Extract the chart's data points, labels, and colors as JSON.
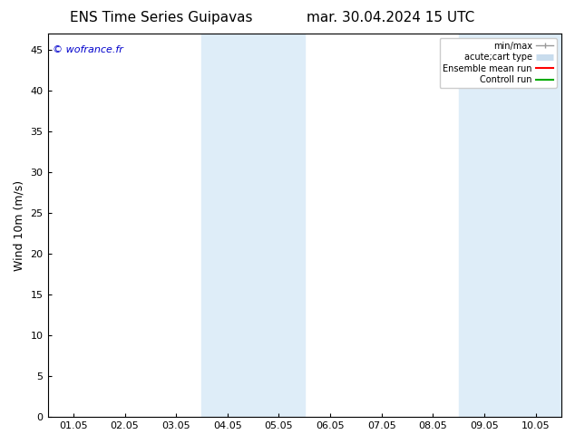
{
  "title_left": "ENS Time Series Guipavas",
  "title_right": "mar. 30.04.2024 15 UTC",
  "ylabel": "Wind 10m (m/s)",
  "xlabel_ticks": [
    "01.05",
    "02.05",
    "03.05",
    "04.05",
    "05.05",
    "06.05",
    "07.05",
    "08.05",
    "09.05",
    "10.05"
  ],
  "x_positions": [
    0,
    1,
    2,
    3,
    4,
    5,
    6,
    7,
    8,
    9
  ],
  "xlim": [
    -0.5,
    9.5
  ],
  "ylim": [
    0,
    47
  ],
  "yticks": [
    0,
    5,
    10,
    15,
    20,
    25,
    30,
    35,
    40,
    45
  ],
  "background_color": "#ffffff",
  "plot_bg_color": "#ffffff",
  "shaded_regions": [
    {
      "xstart": 2.5,
      "xend": 3.5,
      "color": "#deedf8"
    },
    {
      "xstart": 3.5,
      "xend": 4.5,
      "color": "#deedf8"
    },
    {
      "xstart": 7.5,
      "xend": 8.5,
      "color": "#deedf8"
    },
    {
      "xstart": 8.5,
      "xend": 9.5,
      "color": "#deedf8"
    }
  ],
  "watermark_text": "© wofrance.fr",
  "watermark_color": "#0000cc",
  "legend_entries": [
    {
      "label": "min/max",
      "color": "#999999",
      "lw": 1.0
    },
    {
      "label": "acute;cart type",
      "color": "#c8dced",
      "lw": 5
    },
    {
      "label": "Ensemble mean run",
      "color": "#ff0000",
      "lw": 1.5
    },
    {
      "label": "Controll run",
      "color": "#00aa00",
      "lw": 1.5
    }
  ],
  "title_fontsize": 11,
  "tick_fontsize": 8,
  "ylabel_fontsize": 9,
  "watermark_fontsize": 8
}
